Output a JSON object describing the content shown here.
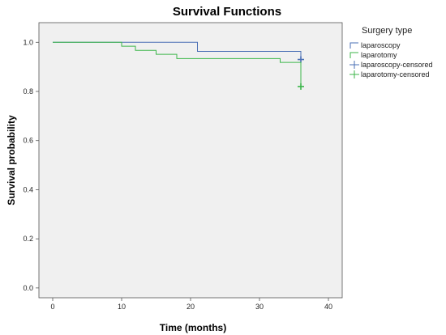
{
  "chart_data": {
    "type": "line",
    "step": true,
    "title": "Survival Functions",
    "xlabel": "Time (months)",
    "ylabel": "Survival probability",
    "xlim": [
      -2,
      42
    ],
    "ylim": [
      -0.04,
      1.08
    ],
    "xticks": [
      0,
      10,
      20,
      30,
      40
    ],
    "yticks": [
      0.0,
      0.2,
      0.4,
      0.6,
      0.8,
      1.0
    ],
    "ytick_labels": [
      "0.0",
      "0.2",
      "0.4",
      "0.6",
      "0.8",
      "1.0"
    ],
    "grid": false,
    "legend": {
      "title": "Surgery type",
      "placement": "right",
      "entries": [
        {
          "label": "laparoscopy",
          "kind": "line",
          "color": "#4a6fb5"
        },
        {
          "label": "laparotomy",
          "kind": "line",
          "color": "#3cb64a"
        },
        {
          "label": "laparoscopy-censored",
          "kind": "censor",
          "color": "#4a6fb5"
        },
        {
          "label": "laparotomy-censored",
          "kind": "censor",
          "color": "#3cb64a"
        }
      ]
    },
    "series": [
      {
        "name": "laparoscopy",
        "color": "#4a6fb5",
        "x": [
          0,
          21,
          36
        ],
        "y": [
          1.0,
          0.963,
          0.93
        ],
        "censored": [
          {
            "x": 36,
            "y": 0.93
          }
        ]
      },
      {
        "name": "laparotomy",
        "color": "#3cb64a",
        "x": [
          0,
          10,
          12,
          15,
          18,
          33,
          36
        ],
        "y": [
          1.0,
          0.984,
          0.967,
          0.951,
          0.934,
          0.918,
          0.82
        ],
        "censored": [
          {
            "x": 36,
            "y": 0.82
          }
        ]
      }
    ]
  }
}
